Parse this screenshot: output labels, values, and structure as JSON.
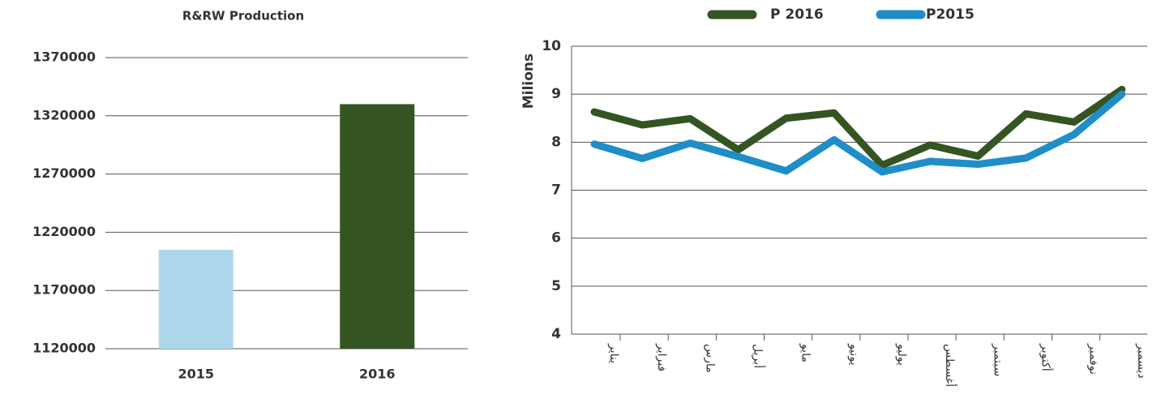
{
  "chart_data": [
    {
      "type": "bar",
      "title": "R&RW Production",
      "categories": [
        "2015",
        "2016"
      ],
      "values": [
        1205000,
        1330000
      ],
      "colors": [
        "#acd7ea",
        "#345522"
      ],
      "ylim": [
        1120000,
        1370000
      ],
      "yticks": [
        1120000,
        1170000,
        1220000,
        1270000,
        1320000,
        1370000
      ],
      "grid": true
    },
    {
      "type": "line",
      "ylabel": "Milions",
      "categories": [
        "يناير",
        "فبراير",
        "مارس",
        "أبريل",
        "مايو",
        "يونيو",
        "يوليو",
        "أغسطس",
        "سبتمبر",
        "أكتوبر",
        "نوفمبر",
        "ديسمبر"
      ],
      "series": [
        {
          "name": "P 2016",
          "color": "#345522",
          "values": [
            8.63,
            8.36,
            8.49,
            7.84,
            8.5,
            8.61,
            7.52,
            7.94,
            7.71,
            8.59,
            8.42,
            9.1
          ]
        },
        {
          "name": "P2015",
          "color": "#1f8ec8",
          "values": [
            7.96,
            7.66,
            7.98,
            7.7,
            7.4,
            8.05,
            7.38,
            7.6,
            7.54,
            7.67,
            8.16,
            9.0
          ]
        }
      ],
      "ylim": [
        4,
        10
      ],
      "yticks": [
        4,
        5,
        6,
        7,
        8,
        9,
        10
      ],
      "grid": true,
      "legend": "top"
    }
  ]
}
